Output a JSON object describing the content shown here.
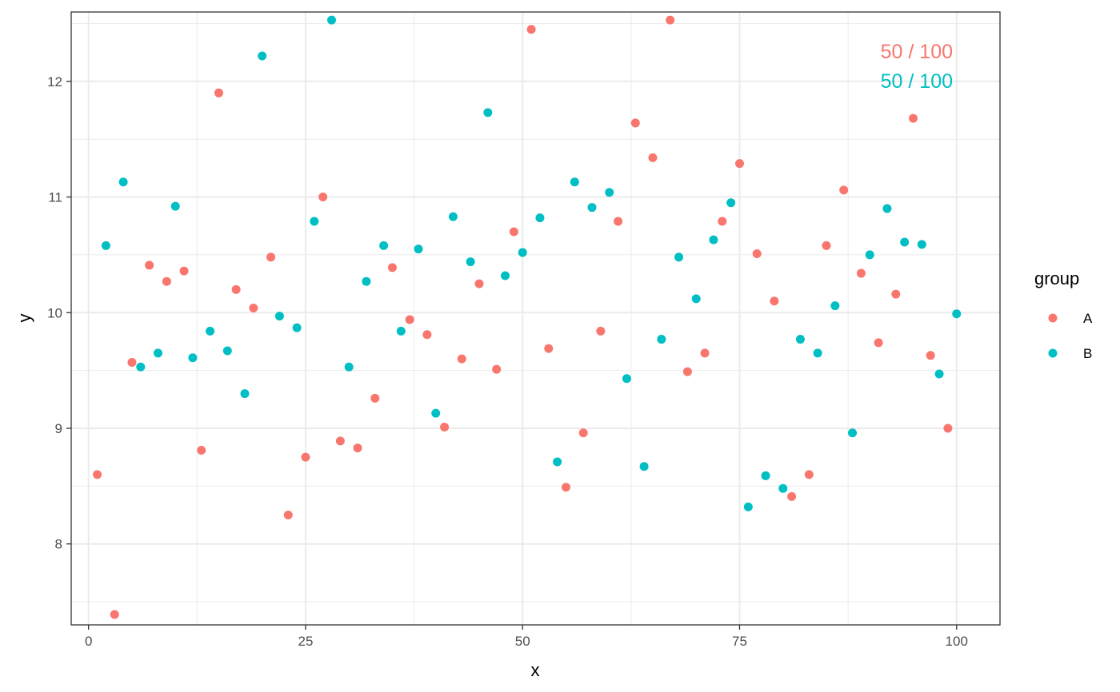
{
  "chart_data": {
    "type": "scatter",
    "xlabel": "x",
    "ylabel": "y",
    "xlim": [
      -2,
      105
    ],
    "ylim": [
      7.3,
      12.6
    ],
    "x_ticks": [
      0,
      25,
      50,
      75,
      100
    ],
    "x_tick_labels": [
      "0",
      "25",
      "50",
      "75",
      "100"
    ],
    "y_ticks": [
      8,
      9,
      10,
      11,
      12
    ],
    "y_tick_labels": [
      "8",
      "9",
      "10",
      "11",
      "12"
    ],
    "x_minor_ticks": [
      12.5,
      37.5,
      62.5,
      87.5
    ],
    "y_minor_ticks": [
      7.5,
      8.5,
      9.5,
      10.5,
      11.5,
      12.5
    ],
    "grid": true,
    "legend": {
      "title": "group",
      "placement": "right"
    },
    "annotations": [
      {
        "text": "50 / 100",
        "color": "#F8766D"
      },
      {
        "text": "50 / 100",
        "color": "#00BFC4"
      }
    ],
    "series": [
      {
        "name": "A",
        "color": "#F8766D",
        "x": [
          1,
          3,
          5,
          7,
          9,
          11,
          13,
          15,
          17,
          19,
          21,
          23,
          25,
          27,
          29,
          31,
          33,
          35,
          37,
          39,
          41,
          43,
          45,
          47,
          49,
          51,
          53,
          55,
          57,
          59,
          61,
          63,
          65,
          67,
          69,
          71,
          73,
          75,
          77,
          79,
          81,
          83,
          85,
          87,
          89,
          91,
          93,
          95,
          97,
          99
        ],
        "y": [
          8.6,
          7.39,
          9.57,
          10.41,
          10.27,
          10.36,
          8.81,
          11.9,
          10.2,
          10.04,
          10.48,
          8.25,
          8.75,
          11.0,
          8.89,
          8.83,
          9.26,
          10.39,
          9.94,
          9.81,
          9.01,
          9.6,
          10.25,
          9.51,
          10.7,
          12.45,
          9.69,
          8.49,
          8.96,
          9.84,
          10.79,
          11.64,
          11.34,
          12.53,
          9.49,
          9.65,
          10.79,
          11.29,
          10.51,
          10.1,
          8.41,
          8.6,
          10.58,
          11.06,
          10.34,
          9.74,
          10.16,
          11.68,
          9.63,
          9.0
        ]
      },
      {
        "name": "B",
        "color": "#00BFC4",
        "x": [
          2,
          4,
          6,
          8,
          10,
          12,
          14,
          16,
          18,
          20,
          22,
          24,
          26,
          28,
          30,
          32,
          34,
          36,
          38,
          40,
          42,
          44,
          46,
          48,
          50,
          52,
          54,
          56,
          58,
          60,
          62,
          64,
          66,
          68,
          70,
          72,
          74,
          76,
          78,
          80,
          82,
          84,
          86,
          88,
          90,
          92,
          94,
          96,
          98,
          100
        ],
        "y": [
          10.58,
          11.13,
          9.53,
          9.65,
          10.92,
          9.61,
          9.84,
          9.67,
          9.3,
          12.22,
          9.97,
          9.87,
          10.79,
          12.53,
          9.53,
          10.27,
          10.58,
          9.84,
          10.55,
          9.13,
          10.83,
          10.44,
          11.73,
          10.32,
          10.52,
          10.82,
          8.71,
          11.13,
          10.91,
          11.04,
          9.43,
          8.67,
          9.77,
          10.48,
          10.12,
          10.63,
          10.95,
          8.32,
          8.59,
          8.48,
          9.77,
          9.65,
          10.06,
          8.96,
          10.5,
          10.9,
          10.61,
          10.59,
          9.47,
          9.99
        ]
      }
    ]
  }
}
